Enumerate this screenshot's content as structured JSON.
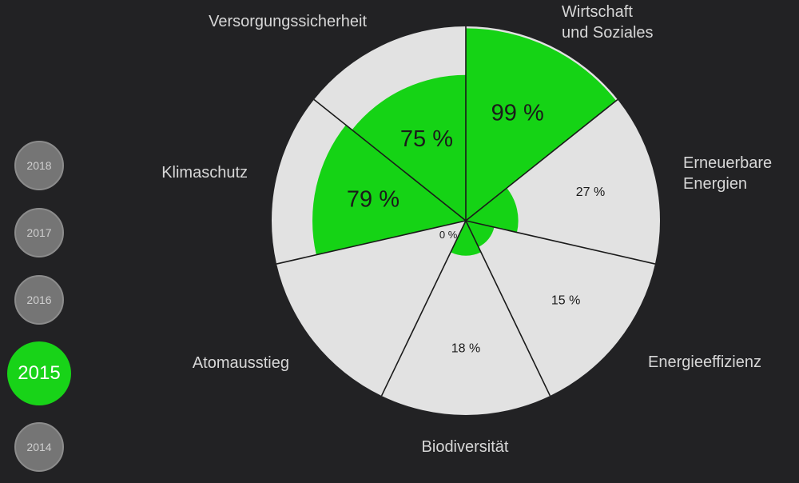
{
  "year_nav": {
    "items": [
      {
        "label": "2018",
        "active": false
      },
      {
        "label": "2017",
        "active": false
      },
      {
        "label": "2016",
        "active": false
      },
      {
        "label": "2015",
        "active": true
      },
      {
        "label": "2014",
        "active": false
      }
    ]
  },
  "colors": {
    "background": "#222224",
    "segment_background": "#e2e2e2",
    "value_fill": "#15d315",
    "divider": "#1a1a1a",
    "label_text": "#d7d7d7",
    "active_year": "#18d318",
    "inactive_year": "#757575"
  },
  "chart_data": {
    "type": "polar-area",
    "rlim": [
      0,
      100
    ],
    "unit": "%",
    "categories": [
      {
        "name": [
          "Wirtschaft",
          "und Soziales"
        ],
        "value": 99,
        "value_label": "99 %"
      },
      {
        "name": [
          "Erneuerbare",
          "Energien"
        ],
        "value": 27,
        "value_label": "27 %"
      },
      {
        "name": [
          "Energieeffizienz"
        ],
        "value": 15,
        "value_label": "15 %"
      },
      {
        "name": [
          "Biodiversität"
        ],
        "value": 18,
        "value_label": "18 %"
      },
      {
        "name": [
          "Atomausstieg"
        ],
        "value": 0,
        "value_label": "0 %"
      },
      {
        "name": [
          "Klimaschutz"
        ],
        "value": 79,
        "value_label": "79 %"
      },
      {
        "name": [
          "Versorgungssicherheit"
        ],
        "value": 75,
        "value_label": "75 %"
      }
    ]
  }
}
